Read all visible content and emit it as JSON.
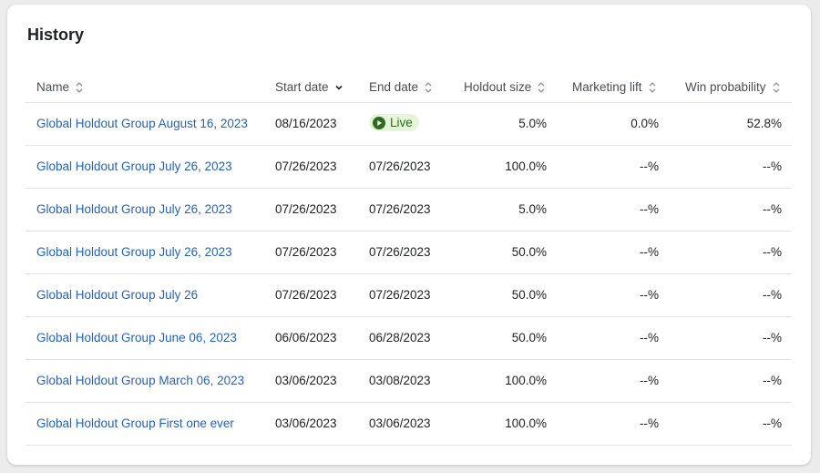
{
  "title": "History",
  "table": {
    "columns": [
      "Name",
      "Start date",
      "End date",
      "Holdout size",
      "Marketing lift",
      "Win probability"
    ],
    "sorted_column": 1,
    "rows": [
      [
        "Global Holdout Group August 16, 2023",
        "08/16/2023",
        "Live",
        "5.0%",
        "0.0%",
        "52.8%"
      ],
      [
        "Global Holdout Group July 26, 2023",
        "07/26/2023",
        "07/26/2023",
        "100.0%",
        "--%",
        "--%"
      ],
      [
        "Global Holdout Group July 26, 2023",
        "07/26/2023",
        "07/26/2023",
        "5.0%",
        "--%",
        "--%"
      ],
      [
        "Global Holdout Group July 26, 2023",
        "07/26/2023",
        "07/26/2023",
        "50.0%",
        "--%",
        "--%"
      ],
      [
        "Global Holdout Group July 26",
        "07/26/2023",
        "07/26/2023",
        "50.0%",
        "--%",
        "--%"
      ],
      [
        "Global Holdout Group June 06, 2023",
        "06/06/2023",
        "06/28/2023",
        "50.0%",
        "--%",
        "--%"
      ],
      [
        "Global Holdout Group March 06, 2023",
        "03/06/2023",
        "03/08/2023",
        "100.0%",
        "--%",
        "--%"
      ],
      [
        "Global Holdout Group First one ever",
        "03/06/2023",
        "03/06/2023",
        "100.0%",
        "--%",
        "--%"
      ]
    ]
  }
}
